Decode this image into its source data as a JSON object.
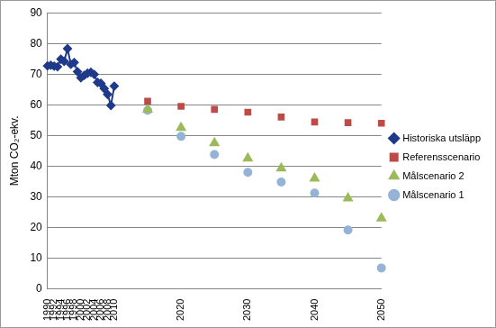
{
  "chart_data": {
    "type": "line",
    "y_label": "Mton CO₂-ekv.",
    "categories": [
      "1990",
      null,
      "1992",
      null,
      "1994",
      null,
      "1996",
      null,
      "1998",
      null,
      "2000",
      null,
      "2002",
      null,
      "2004",
      null,
      "2006",
      null,
      "2008",
      null,
      "2010",
      null,
      null,
      null,
      null,
      null,
      null,
      null,
      null,
      null,
      null,
      null,
      null,
      null,
      null,
      null,
      null,
      null,
      null,
      null,
      "2020",
      null,
      null,
      null,
      null,
      null,
      null,
      null,
      null,
      null,
      null,
      null,
      null,
      null,
      null,
      null,
      null,
      null,
      null,
      null,
      "2030",
      null,
      null,
      null,
      null,
      null,
      null,
      null,
      null,
      null,
      null,
      null,
      null,
      null,
      null,
      null,
      null,
      null,
      null,
      null,
      "2040",
      null,
      null,
      null,
      null,
      null,
      null,
      null,
      null,
      null,
      null,
      null,
      null,
      null,
      null,
      null,
      null,
      null,
      null,
      null,
      "2050"
    ],
    "series": [
      {
        "name": "Historiska utsläpp",
        "color": "#1f3a8a",
        "marker": "diamond",
        "line_style": "solid",
        "values": [
          72.7,
          72.9,
          72.6,
          72.4,
          74.9,
          74.2,
          78.3,
          73.2,
          73.8,
          70.8,
          68.8,
          69.6,
          70.3,
          70.6,
          69.9,
          67.3,
          67.0,
          65.3,
          63.4,
          59.8,
          66.1,
          null,
          null,
          null,
          null,
          null,
          null,
          null,
          null,
          null,
          null,
          null,
          null,
          null,
          null,
          null,
          null,
          null,
          null,
          null,
          null,
          null,
          null,
          null,
          null,
          null,
          null,
          null,
          null,
          null,
          null,
          null,
          null,
          null,
          null,
          null,
          null,
          null,
          null,
          null,
          null,
          null,
          null,
          null,
          null,
          null,
          null,
          null,
          null,
          null,
          null,
          null,
          null,
          null,
          null,
          null,
          null,
          null,
          null,
          null,
          null,
          null,
          null,
          null,
          null,
          null,
          null,
          null,
          null,
          null,
          null,
          null,
          null,
          null,
          null,
          null,
          null,
          null,
          null,
          null,
          null
        ]
      },
      {
        "name": "Referensscenario",
        "color": "#be4b48",
        "marker": "square",
        "line_style": "none",
        "values": [
          null,
          null,
          null,
          null,
          null,
          null,
          null,
          null,
          null,
          null,
          null,
          null,
          null,
          null,
          null,
          null,
          null,
          null,
          null,
          null,
          null,
          null,
          null,
          null,
          null,
          null,
          null,
          null,
          null,
          null,
          61.2,
          null,
          null,
          null,
          null,
          null,
          null,
          null,
          null,
          null,
          59.5,
          null,
          null,
          null,
          null,
          null,
          null,
          null,
          null,
          null,
          58.5,
          null,
          null,
          null,
          null,
          null,
          null,
          null,
          null,
          null,
          57.6,
          null,
          null,
          null,
          null,
          null,
          null,
          null,
          null,
          null,
          56.0,
          null,
          null,
          null,
          null,
          null,
          null,
          null,
          null,
          null,
          54.4,
          null,
          null,
          null,
          null,
          null,
          null,
          null,
          null,
          null,
          54.2,
          null,
          null,
          null,
          null,
          null,
          null,
          null,
          null,
          null,
          54.0
        ]
      },
      {
        "name": "Målscenario 2",
        "color": "#9bbb59",
        "marker": "triangle",
        "line_style": "none",
        "values": [
          null,
          null,
          null,
          null,
          null,
          null,
          null,
          null,
          null,
          null,
          null,
          null,
          null,
          null,
          null,
          null,
          null,
          null,
          null,
          null,
          null,
          null,
          null,
          null,
          null,
          null,
          null,
          null,
          null,
          null,
          58.5,
          null,
          null,
          null,
          null,
          null,
          null,
          null,
          null,
          null,
          52.5,
          null,
          null,
          null,
          null,
          null,
          null,
          null,
          null,
          null,
          47.5,
          null,
          null,
          null,
          null,
          null,
          null,
          null,
          null,
          null,
          42.5,
          null,
          null,
          null,
          null,
          null,
          null,
          null,
          null,
          null,
          39.3,
          null,
          null,
          null,
          null,
          null,
          null,
          null,
          null,
          null,
          36.0,
          null,
          null,
          null,
          null,
          null,
          null,
          null,
          null,
          null,
          29.5,
          null,
          null,
          null,
          null,
          null,
          null,
          null,
          null,
          null,
          23.0
        ]
      },
      {
        "name": "Målscenario 1",
        "color": "#95b3d7",
        "marker": "circle",
        "line_style": "none",
        "values": [
          null,
          null,
          null,
          null,
          null,
          null,
          null,
          null,
          null,
          null,
          null,
          null,
          null,
          null,
          null,
          null,
          null,
          null,
          null,
          null,
          null,
          null,
          null,
          null,
          null,
          null,
          null,
          null,
          null,
          null,
          58.2,
          null,
          null,
          null,
          null,
          null,
          null,
          null,
          null,
          null,
          49.7,
          null,
          null,
          null,
          null,
          null,
          null,
          null,
          null,
          null,
          43.8,
          null,
          null,
          null,
          null,
          null,
          null,
          null,
          null,
          null,
          38.0,
          null,
          null,
          null,
          null,
          null,
          null,
          null,
          null,
          null,
          34.8,
          null,
          null,
          null,
          null,
          null,
          null,
          null,
          null,
          null,
          31.2,
          null,
          null,
          null,
          null,
          null,
          null,
          null,
          null,
          null,
          19.2,
          null,
          null,
          null,
          null,
          null,
          null,
          null,
          null,
          null,
          6.8
        ]
      }
    ],
    "ylim": [
      0,
      90
    ],
    "yticks": [
      0,
      10,
      20,
      30,
      40,
      50,
      60,
      70,
      80,
      90
    ],
    "grid": true,
    "legend": "right"
  }
}
